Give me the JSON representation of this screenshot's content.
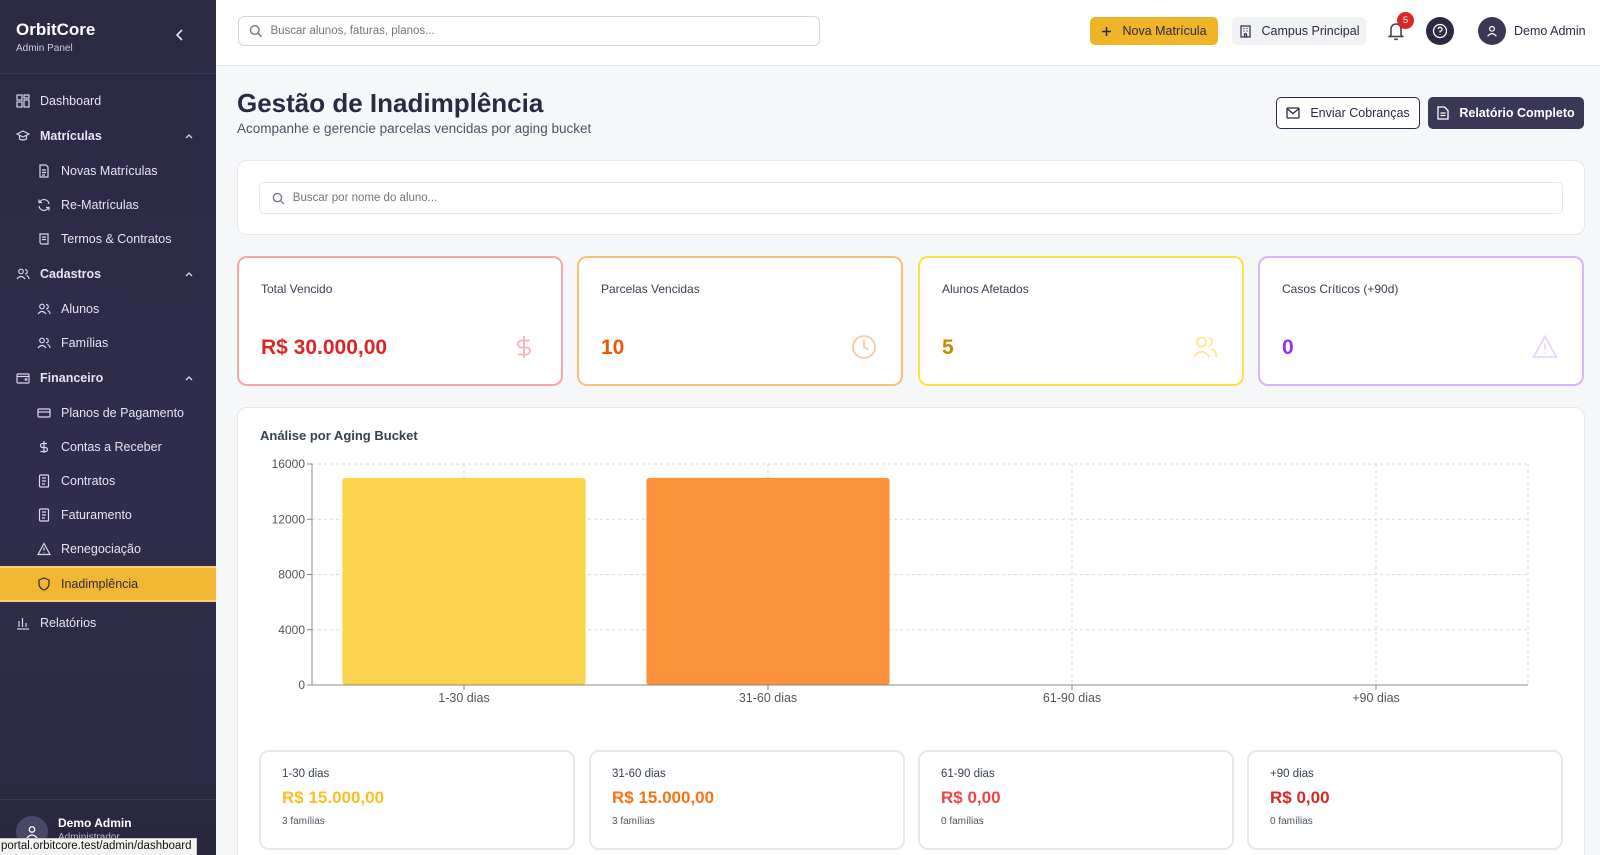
{
  "sidebar": {
    "brand": "OrbitCore",
    "brand_sub": "Admin Panel",
    "items": [
      {
        "label": "Dashboard",
        "icon": "grid-icon"
      },
      {
        "label": "Matrículas",
        "icon": "graduation-cap-icon"
      },
      {
        "label": "Novas Matrículas",
        "icon": "file-icon"
      },
      {
        "label": "Re-Matrículas",
        "icon": "refresh-icon"
      },
      {
        "label": "Termos & Contratos",
        "icon": "scroll-icon"
      },
      {
        "label": "Cadastros",
        "icon": "users-icon"
      },
      {
        "label": "Alunos",
        "icon": "users-icon"
      },
      {
        "label": "Famílias",
        "icon": "users-icon"
      },
      {
        "label": "Financeiro",
        "icon": "wallet-icon"
      },
      {
        "label": "Planos de Pagamento",
        "icon": "credit-card-icon"
      },
      {
        "label": "Contas a Receber",
        "icon": "dollar-icon"
      },
      {
        "label": "Contratos",
        "icon": "receipt-icon"
      },
      {
        "label": "Faturamento",
        "icon": "receipt-icon"
      },
      {
        "label": "Renegociação",
        "icon": "alert-triangle-icon"
      },
      {
        "label": "Inadimplência",
        "icon": "shield-icon"
      },
      {
        "label": "Relatórios",
        "icon": "bar-chart-icon"
      }
    ],
    "user_name": "Demo Admin",
    "user_role": "Administrador"
  },
  "status_url": "portal.orbitcore.test/admin/dashboard",
  "topbar": {
    "search_placeholder": "Buscar alunos, faturas, planos...",
    "new_button": "Nova Matrícula",
    "campus_button": "Campus Principal",
    "notification_count": "5",
    "user_name": "Demo Admin"
  },
  "page": {
    "title": "Gestão de Inadimplência",
    "subtitle": "Acompanhe e gerencie parcelas vencidas por aging bucket",
    "send_button": "Enviar Cobranças",
    "report_button": "Relatório Completo",
    "search_placeholder": "Buscar por nome do aluno..."
  },
  "kpis": [
    {
      "label": "Total Vencido",
      "value": "R$ 30.000,00",
      "color": "#dc2626",
      "border": "#f8a5a5",
      "icon": "dollar-icon"
    },
    {
      "label": "Parcelas Vencidas",
      "value": "10",
      "color": "#ea580c",
      "border": "#fbbf7a",
      "icon": "clock-icon"
    },
    {
      "label": "Alunos Afetados",
      "value": "5",
      "color": "#ca8a04",
      "border": "#fde047",
      "icon": "users-icon"
    },
    {
      "label": "Casos Críticos (+90d)",
      "value": "0",
      "color": "#9333ea",
      "border": "#d8b4fe",
      "icon": "alert-triangle-icon"
    }
  ],
  "chart_data": {
    "type": "bar",
    "title": "Análise por Aging Bucket",
    "categories": [
      "1-30 dias",
      "31-60 dias",
      "61-90 dias",
      "+90 dias"
    ],
    "values": [
      15000,
      15000,
      0,
      0
    ],
    "colors": [
      "#fcd34d",
      "#fb923c",
      "#ef4444",
      "#dc2626"
    ],
    "ylim": [
      0,
      16000
    ],
    "yticks": [
      0,
      4000,
      8000,
      12000,
      16000
    ],
    "grid": true
  },
  "buckets": [
    {
      "label": "1-30 dias",
      "value": "R$ 15.000,00",
      "count": "3 famílias",
      "color": "#fbbf24"
    },
    {
      "label": "31-60 dias",
      "value": "R$ 15.000,00",
      "count": "3 famílias",
      "color": "#f97316"
    },
    {
      "label": "61-90 dias",
      "value": "R$ 0,00",
      "count": "0 famílias",
      "color": "#ef4444"
    },
    {
      "label": "+90 dias",
      "value": "R$ 0,00",
      "count": "0 famílias",
      "color": "#dc2626"
    }
  ]
}
